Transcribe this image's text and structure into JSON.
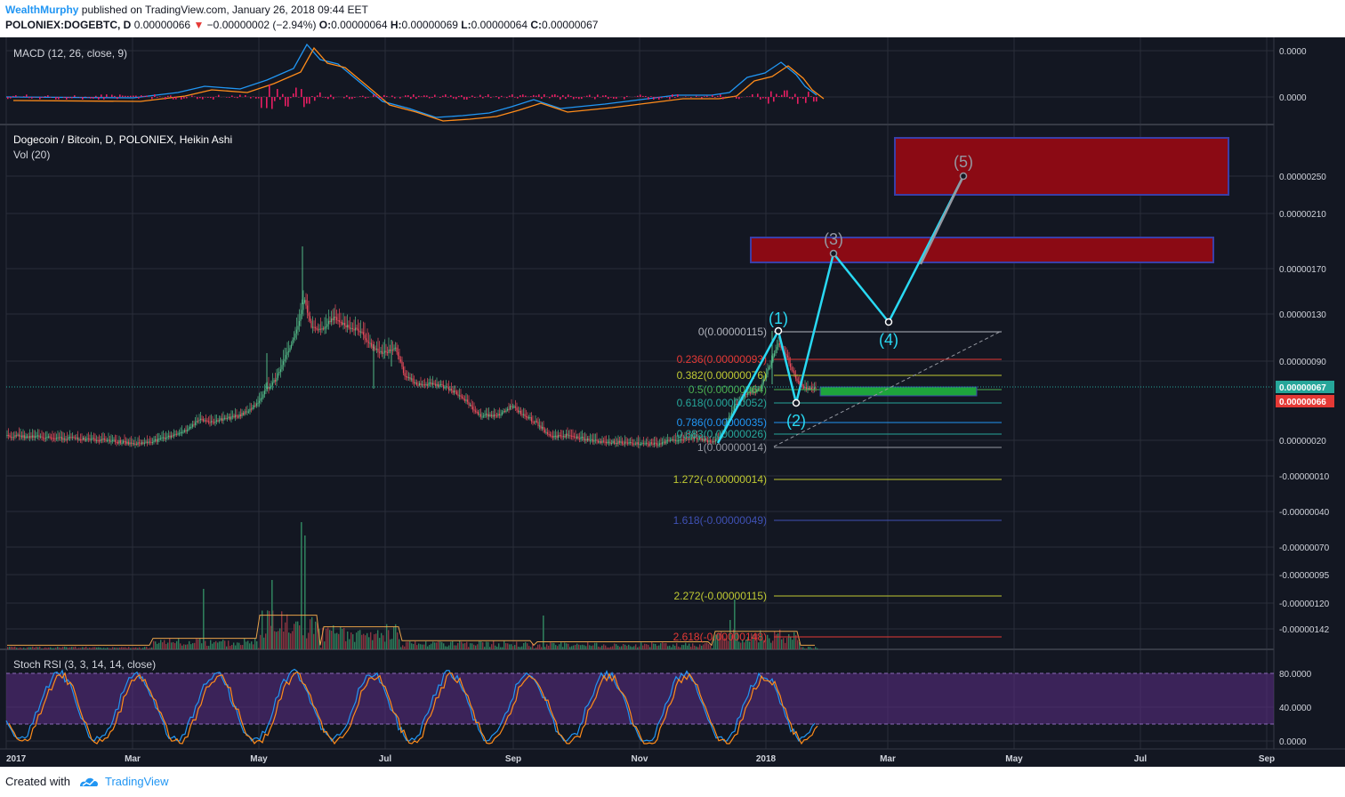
{
  "header": {
    "author": "WealthMurphy",
    "published_text": "published on TradingView.com, January 26, 2018 09:44 EET",
    "symbol": "POLONIEX:DOGEBTC, D",
    "last_price": "0.00000066",
    "change": "−0.00000002 (−2.94%)",
    "open_label": "O:",
    "open": "0.00000064",
    "high_label": "H:",
    "high": "0.00000069",
    "low_label": "L:",
    "low": "0.00000064",
    "close_label": "C:",
    "close": "0.00000067"
  },
  "panes": {
    "macd": {
      "title": "MACD (12, 26, close, 9)",
      "axis_labels": [
        "0.0000",
        "0.0000"
      ]
    },
    "main": {
      "title": "Dogecoin / Bitcoin, D, POLONIEX, Heikin Ashi",
      "volume_title": "Vol (20)",
      "axis_labels": [
        "0.00000250",
        "0.00000210",
        "0.00000170",
        "0.00000130",
        "0.00000090",
        "0.00000020",
        "-0.00000010",
        "-0.00000040",
        "-0.00000070",
        "-0.00000095",
        "-0.00000120",
        "-0.00000142"
      ],
      "price_tag_green": "0.00000067",
      "price_tag_red": "0.00000066"
    },
    "stoch": {
      "title": "Stoch RSI (3, 3, 14, 14, close)",
      "axis_labels": [
        "80.0000",
        "40.0000",
        "0.0000"
      ]
    }
  },
  "fibonacci": [
    {
      "label": "0(0.00000115)",
      "color": "#b2b5be"
    },
    {
      "label": "0.236(0.00000093)",
      "color": "#e53935"
    },
    {
      "label": "0.382(0.00000076)",
      "color": "#c0ca33"
    },
    {
      "label": "0.5(0.00000064)",
      "color": "#4caf50"
    },
    {
      "label": "0.618(0.00000052)",
      "color": "#26a69a"
    },
    {
      "label": "0.786(0.00000035)",
      "color": "#2196f3"
    },
    {
      "label": "0.883(0.00000026)",
      "color": "#26a69a"
    },
    {
      "label": "1(0.00000014)",
      "color": "#9598a1"
    },
    {
      "label": "1.272(-0.00000014)",
      "color": "#c0ca33"
    },
    {
      "label": "1.618(-0.00000049)",
      "color": "#3f51b5"
    },
    {
      "label": "2.272(-0.00000115)",
      "color": "#c0ca33"
    },
    {
      "label": "2.618(-0.00000148)",
      "color": "#e53935"
    }
  ],
  "waves": [
    "(1)",
    "(2)",
    "(3)",
    "(4)",
    "(5)"
  ],
  "x_axis": [
    "2017",
    "Mar",
    "May",
    "Jul",
    "Sep",
    "Nov",
    "2018",
    "Mar",
    "May",
    "Jul",
    "Sep"
  ],
  "footer": {
    "created_with": "Created with",
    "brand": "TradingView"
  },
  "colors": {
    "background": "#131722",
    "up": "#53b987",
    "down": "#eb4d5c",
    "wave": "#29d9f3",
    "target_box": "#8b0a14",
    "stoch_band": "#5c2d87"
  },
  "chart_data": {
    "type": "candlestick",
    "description_series": "DOGE/BTC daily Heikin Ashi price (approx, BTC)",
    "x": [
      "2017-01",
      "2017-02",
      "2017-03",
      "2017-04",
      "2017-05",
      "2017-06",
      "2017-07",
      "2017-08",
      "2017-09",
      "2017-10",
      "2017-11",
      "2017-12",
      "2018-01"
    ],
    "close": [
      2.3e-07,
      2.2e-07,
      2.2e-07,
      3.3e-07,
      8e-07,
      1.2e-06,
      8.5e-07,
      5e-07,
      4.5e-07,
      2.4e-07,
      2.2e-07,
      6e-07,
      6.7e-07
    ],
    "ylim": [
      -1.6e-06,
      2.8e-06
    ]
  }
}
